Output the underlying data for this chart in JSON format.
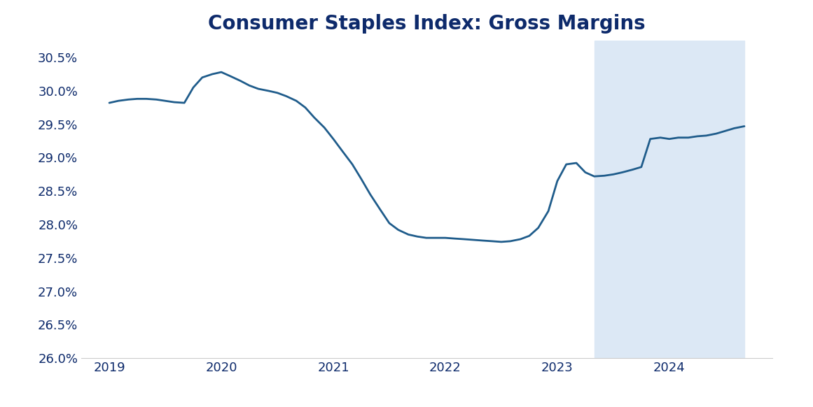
{
  "title": "Consumer Staples Index: Gross Margins",
  "title_color": "#0d2a6b",
  "title_fontsize": 20,
  "title_fontweight": "bold",
  "line_color": "#1f5c8b",
  "line_width": 2.0,
  "background_color": "#ffffff",
  "shaded_region_color": "#dce8f5",
  "shaded_x_start": 2023.33,
  "shaded_x_end": 2024.67,
  "ylim": [
    26.0,
    30.75
  ],
  "ytick_values": [
    26.0,
    26.5,
    27.0,
    27.5,
    28.0,
    28.5,
    29.0,
    29.5,
    30.0,
    30.5
  ],
  "xtick_labels": [
    "2019",
    "2020",
    "2021",
    "2022",
    "2023",
    "2024"
  ],
  "xtick_positions": [
    2019,
    2020,
    2021,
    2022,
    2023,
    2024
  ],
  "tick_fontsize": 13,
  "spine_color": "#cccccc",
  "xlim_left": 2018.75,
  "xlim_right": 2024.92,
  "x": [
    2019.0,
    2019.08,
    2019.17,
    2019.25,
    2019.33,
    2019.42,
    2019.5,
    2019.58,
    2019.67,
    2019.75,
    2019.83,
    2019.92,
    2020.0,
    2020.08,
    2020.17,
    2020.25,
    2020.33,
    2020.42,
    2020.5,
    2020.58,
    2020.67,
    2020.75,
    2020.83,
    2020.92,
    2021.0,
    2021.08,
    2021.17,
    2021.25,
    2021.33,
    2021.42,
    2021.5,
    2021.58,
    2021.67,
    2021.75,
    2021.83,
    2021.92,
    2022.0,
    2022.08,
    2022.17,
    2022.25,
    2022.33,
    2022.42,
    2022.5,
    2022.58,
    2022.67,
    2022.75,
    2022.83,
    2022.92,
    2023.0,
    2023.08,
    2023.17,
    2023.25,
    2023.33,
    2023.42,
    2023.5,
    2023.58,
    2023.67,
    2023.75,
    2023.83,
    2023.92,
    2024.0,
    2024.08,
    2024.17,
    2024.25,
    2024.33,
    2024.42,
    2024.5,
    2024.58,
    2024.67
  ],
  "y": [
    29.82,
    29.85,
    29.87,
    29.88,
    29.88,
    29.87,
    29.85,
    29.83,
    29.82,
    30.05,
    30.2,
    30.25,
    30.28,
    30.22,
    30.15,
    30.08,
    30.03,
    30.0,
    29.97,
    29.92,
    29.85,
    29.75,
    29.6,
    29.45,
    29.28,
    29.1,
    28.9,
    28.68,
    28.45,
    28.22,
    28.02,
    27.92,
    27.85,
    27.82,
    27.8,
    27.8,
    27.8,
    27.79,
    27.78,
    27.77,
    27.76,
    27.75,
    27.74,
    27.75,
    27.78,
    27.83,
    27.95,
    28.2,
    28.65,
    28.9,
    28.92,
    28.78,
    28.72,
    28.73,
    28.75,
    28.78,
    28.82,
    28.86,
    29.28,
    29.3,
    29.28,
    29.3,
    29.3,
    29.32,
    29.33,
    29.36,
    29.4,
    29.44,
    29.47
  ]
}
